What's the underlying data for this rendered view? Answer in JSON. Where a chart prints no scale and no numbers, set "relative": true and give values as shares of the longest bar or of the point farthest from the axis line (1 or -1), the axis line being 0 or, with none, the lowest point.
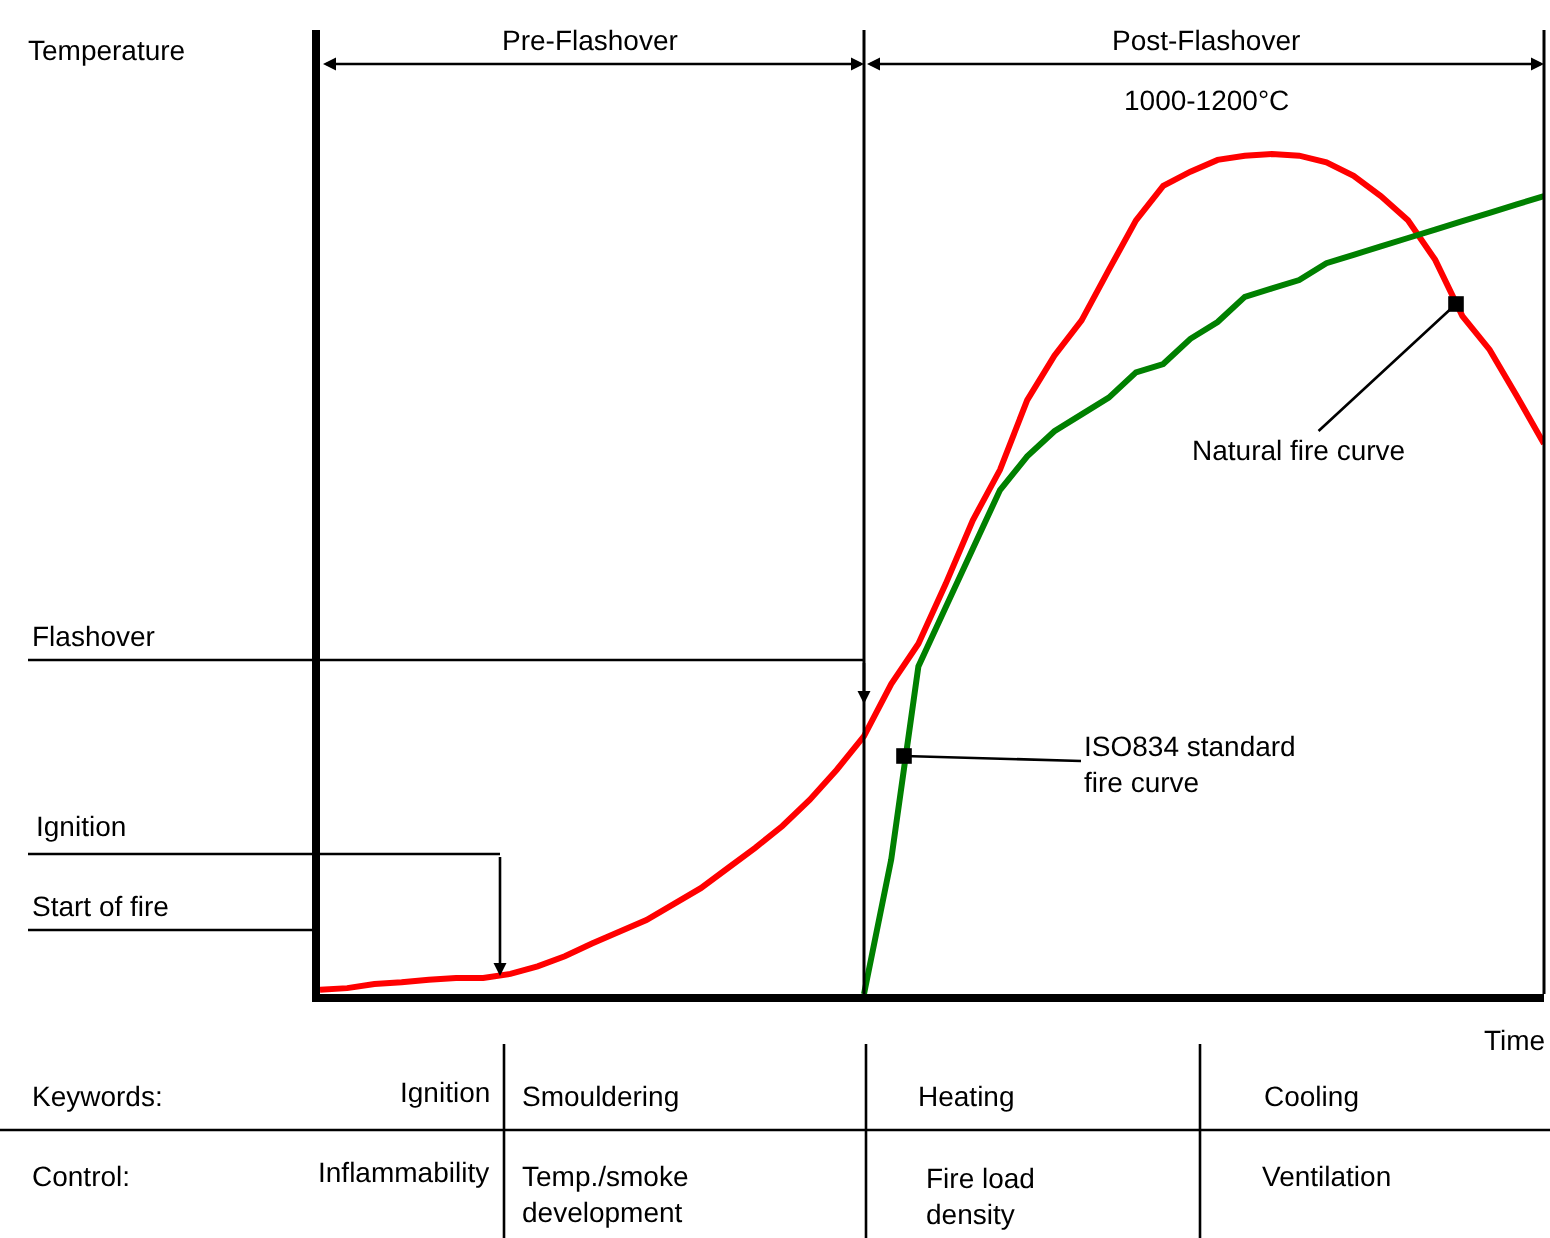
{
  "chart_data": {
    "type": "line",
    "relative": true,
    "xlabel": "Time",
    "legend": false,
    "marker": "none",
    "line_style": "solid",
    "categories": [
      null,
      null,
      null,
      null,
      null,
      null,
      null,
      null,
      null,
      null,
      null,
      null,
      null,
      null,
      null,
      null,
      null,
      null,
      null,
      null,
      null,
      null,
      null,
      null,
      null,
      null,
      null,
      null,
      null,
      null,
      null,
      null,
      null,
      null,
      null,
      null,
      null,
      null,
      null,
      null,
      null,
      null,
      null,
      null,
      null,
      null
    ],
    "series": [
      {
        "color": "#ff0000",
        "values": [
          0.005,
          0.007,
          0.012,
          0.014,
          0.017,
          0.019,
          0.019,
          0.024,
          0.033,
          0.045,
          0.06,
          0.074,
          0.088,
          0.107,
          0.126,
          0.15,
          0.174,
          0.2,
          0.231,
          0.267,
          0.307,
          0.369,
          0.417,
          0.488,
          0.564,
          0.624,
          0.707,
          0.76,
          0.802,
          0.862,
          0.921,
          0.962,
          0.979,
          0.993,
          0.998,
          1,
          0.998,
          0.99,
          0.974,
          0.95,
          0.921,
          0.874,
          0.807,
          0.767,
          0.712,
          0.655
        ]
      },
      {
        "color": "#008000",
        "values": [
          null,
          null,
          null,
          null,
          null,
          null,
          null,
          null,
          null,
          null,
          null,
          null,
          null,
          null,
          null,
          null,
          null,
          null,
          null,
          null,
          0,
          0.16,
          0.39,
          0.46,
          0.53,
          0.6,
          0.64,
          0.67,
          0.69,
          0.71,
          0.74,
          0.75,
          0.78,
          0.8,
          0.83,
          0.84,
          0.85,
          0.87,
          0.88,
          0.89,
          0.9,
          0.91,
          0.92,
          0.93,
          0.94,
          0.95
        ]
      }
    ],
    "annotations": [
      "Temperature",
      "Natural fire curve",
      "ISO834 standard\nfire curve",
      "Pre-Flashover",
      "Post-Flashover",
      "1000-1200°C",
      "Flashover",
      "Ignition",
      "Start of fire",
      "Keywords:",
      "Ignition",
      "Smouldering",
      "Heating",
      "Cooling",
      "Control:",
      "Inflammability",
      "Temp./smoke\ndevelopment",
      "Fire load\ndensity",
      "Ventilation"
    ]
  }
}
